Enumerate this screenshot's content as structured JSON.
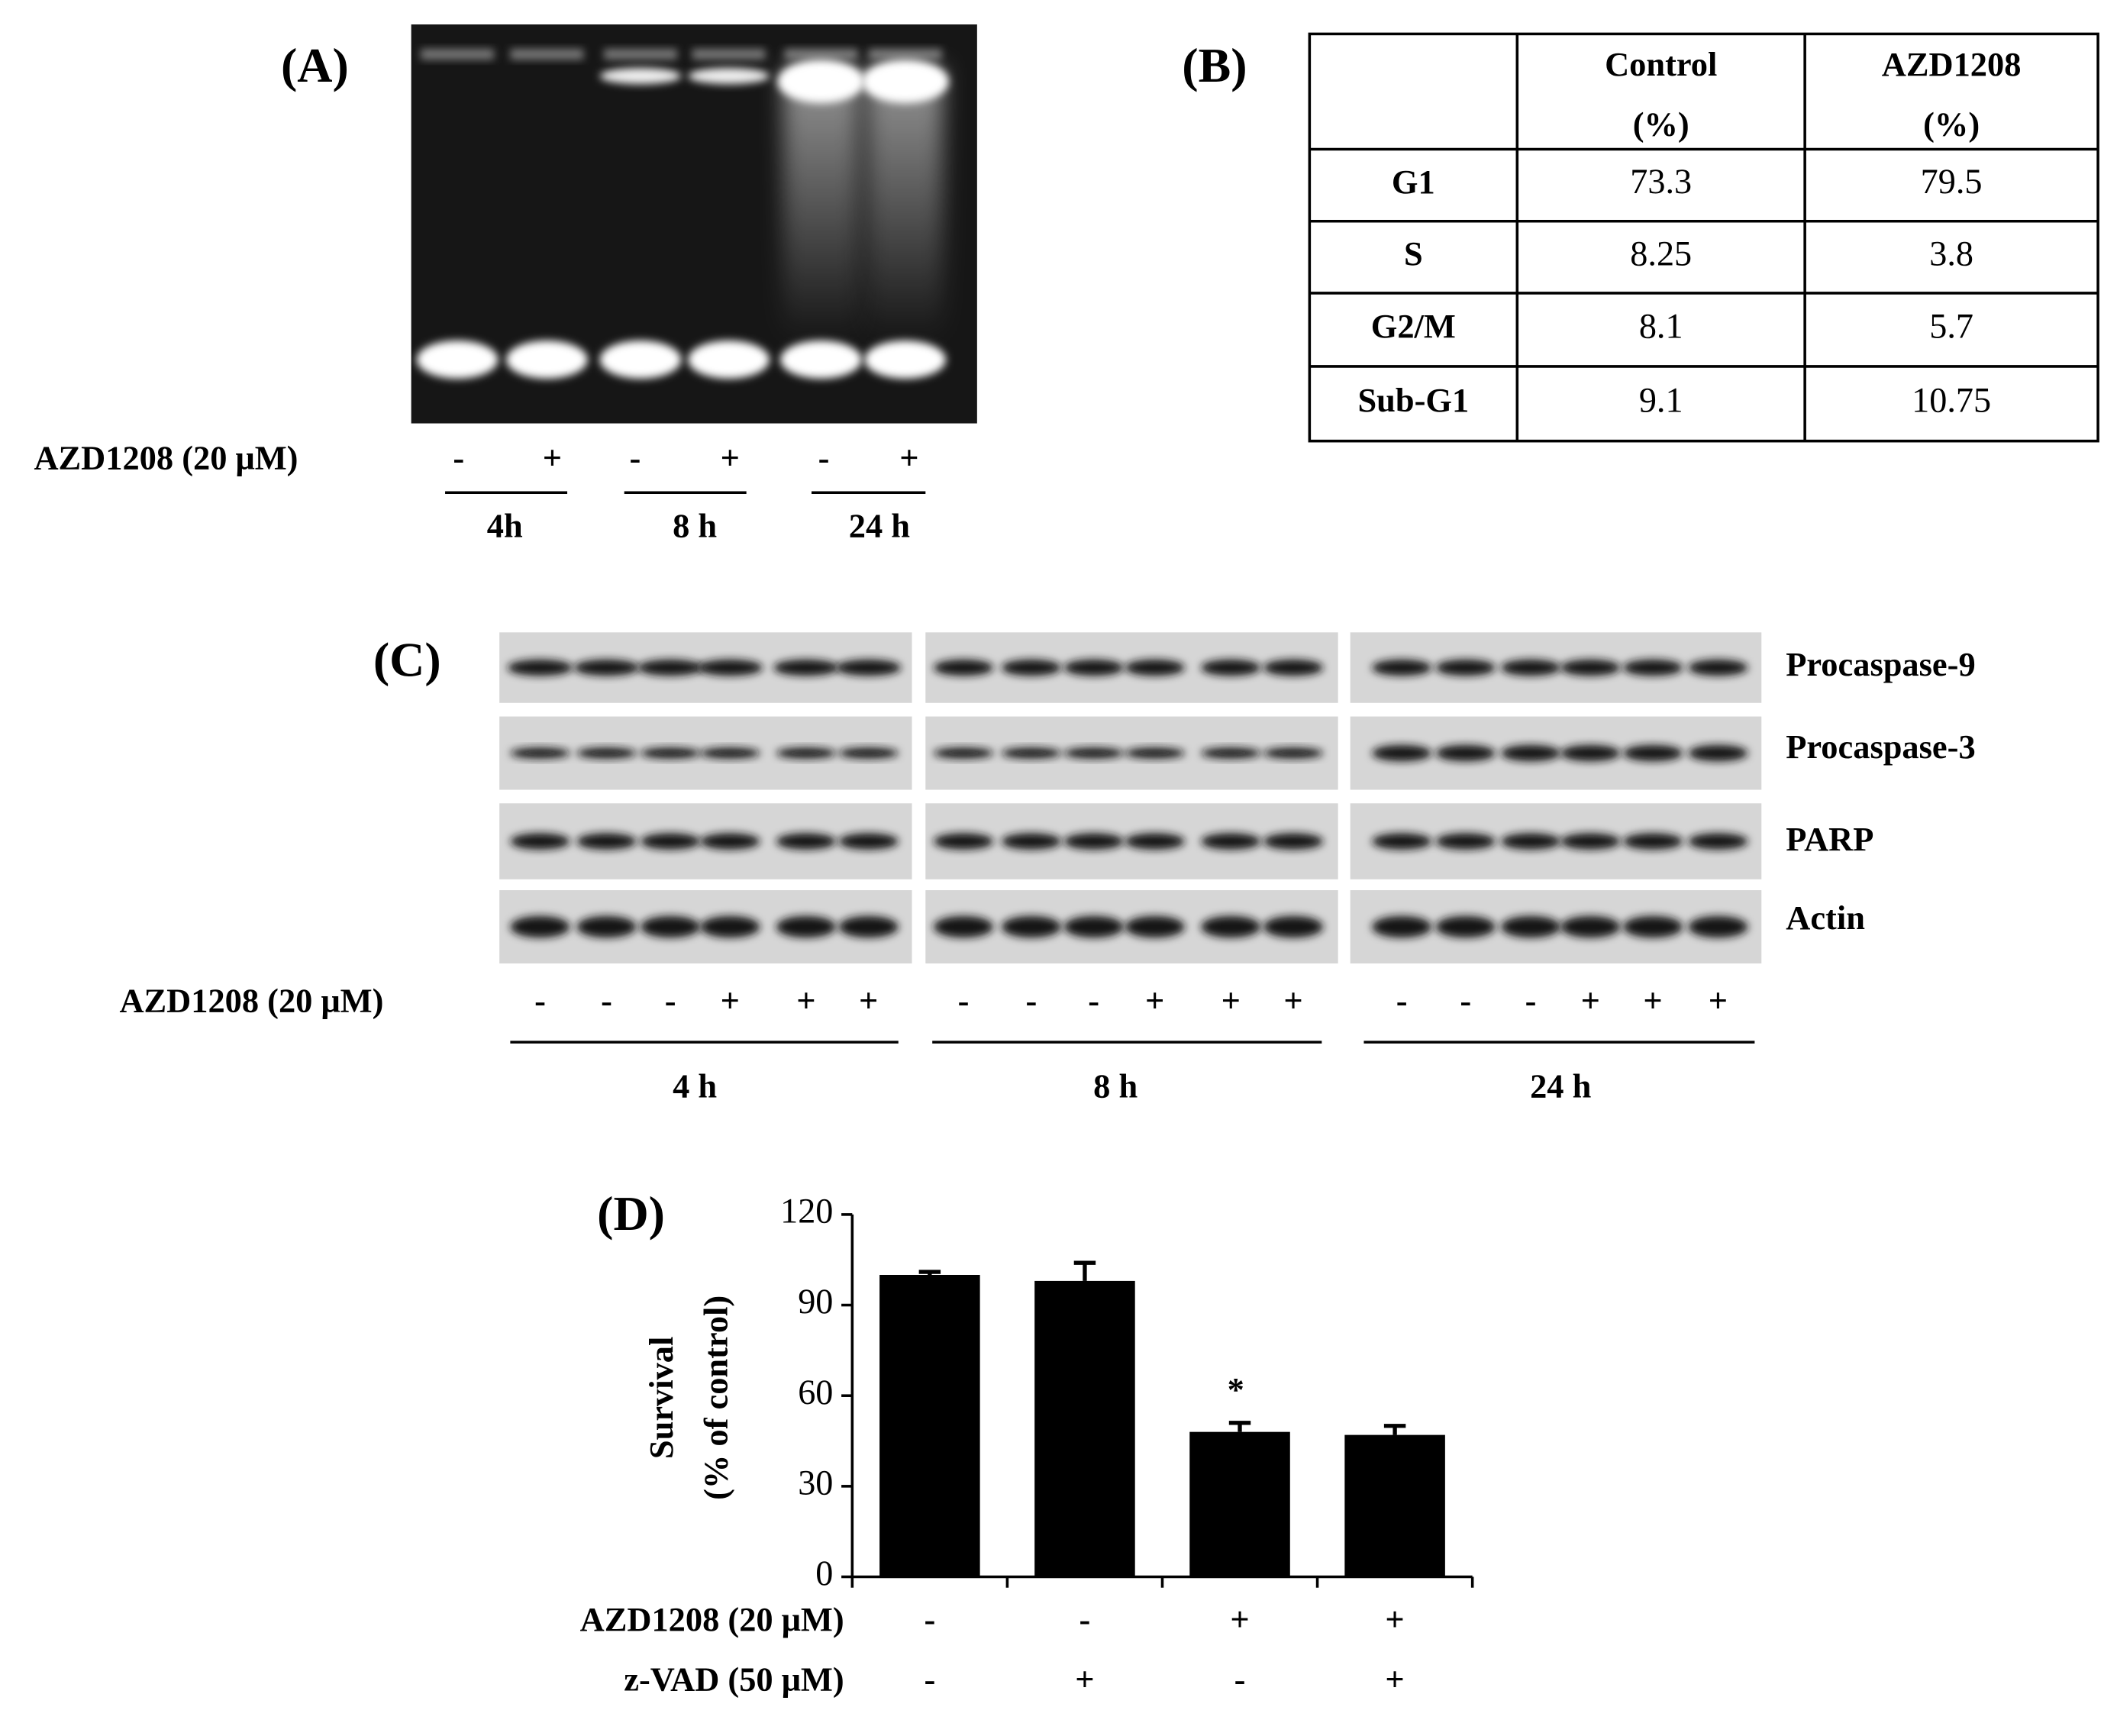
{
  "panel_a": {
    "label": "(A)",
    "treatment_label": "AZD1208 (20 μM)",
    "signs": [
      "-",
      "+",
      "-",
      "+",
      "-",
      "+"
    ],
    "times": [
      "4h",
      "8 h",
      "24 h"
    ]
  },
  "panel_b": {
    "label": "(B)",
    "table": {
      "header": [
        [
          "Control",
          "(%)"
        ],
        [
          "AZD1208",
          "(%)"
        ]
      ],
      "rows": [
        [
          "G1",
          "73.3",
          "79.5"
        ],
        [
          "S",
          "8.25",
          "3.8"
        ],
        [
          "G2/M",
          "8.1",
          "5.7"
        ],
        [
          "Sub-G1",
          "9.1",
          "10.75"
        ]
      ]
    }
  },
  "panel_c": {
    "label": "(C)",
    "proteins": [
      "Procaspase-9",
      "Procaspase-3",
      "PARP",
      "Actin"
    ],
    "treatment_label": "AZD1208 (20 μM)",
    "signs": [
      "-",
      "-",
      "-",
      "+",
      "+",
      "+",
      "-",
      "-",
      "-",
      "+",
      "+",
      "+",
      "-",
      "-",
      "-",
      "+",
      "+",
      "+"
    ],
    "times": [
      "4 h",
      "8 h",
      "24 h"
    ]
  },
  "chart_data": {
    "type": "bar",
    "panel_label": "(D)",
    "ylabel": [
      "Survival",
      "(% of control)"
    ],
    "values": [
      100,
      98,
      48,
      47
    ],
    "errors": [
      1,
      6,
      3,
      3
    ],
    "value_annotations": [
      null,
      null,
      "*",
      null
    ],
    "color": "#000000",
    "ylim": [
      0,
      120
    ],
    "yticks": [
      0,
      30,
      60,
      90,
      120
    ],
    "conditions": [
      {
        "name": "AZD1208 (20 μM)",
        "values": [
          "-",
          "-",
          "+",
          "+"
        ]
      },
      {
        "name": "z-VAD (50 μM)",
        "values": [
          "-",
          "+",
          "-",
          "+"
        ]
      }
    ]
  }
}
